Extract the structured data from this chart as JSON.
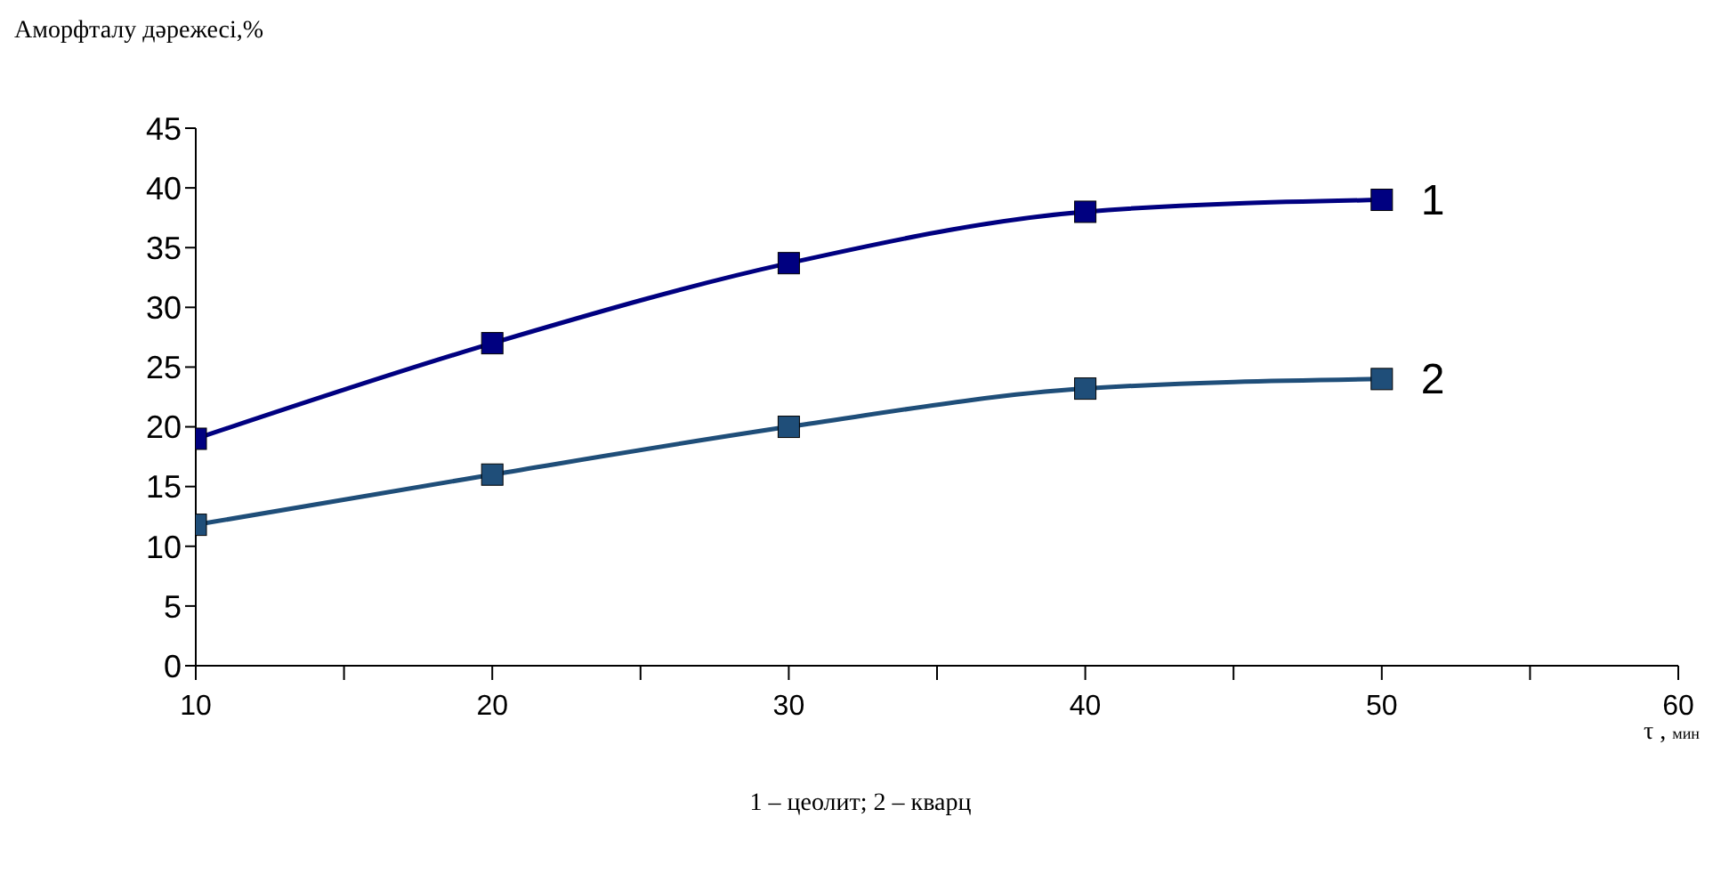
{
  "chart_data": {
    "type": "line",
    "ylabel": "Аморфталу дәрежесі,%",
    "xlabel": "τ , мин",
    "annotations": [
      "1 – цеолит; 2 – кварц"
    ],
    "x": [
      10,
      20,
      30,
      40,
      50
    ],
    "series": [
      {
        "name": "1",
        "color": "#000080",
        "values": [
          19,
          27,
          33.7,
          38,
          39
        ]
      },
      {
        "name": "2",
        "color": "#1f4e79",
        "values": [
          11.8,
          16,
          20,
          23.2,
          24
        ]
      }
    ],
    "xlim": [
      10,
      60
    ],
    "xticks": [
      10,
      {
        "value": 15,
        "label": null
      },
      20,
      {
        "value": 25,
        "label": null
      },
      30,
      {
        "value": 35,
        "label": null
      },
      40,
      {
        "value": 45,
        "label": null
      },
      50,
      {
        "value": 55,
        "label": null
      },
      60
    ],
    "ylim": [
      0,
      45
    ],
    "yticks": [
      0,
      5,
      10,
      15,
      20,
      25,
      30,
      35,
      40,
      45
    ],
    "grid": false,
    "legend": false,
    "marker": "square",
    "line_style": "solid"
  }
}
